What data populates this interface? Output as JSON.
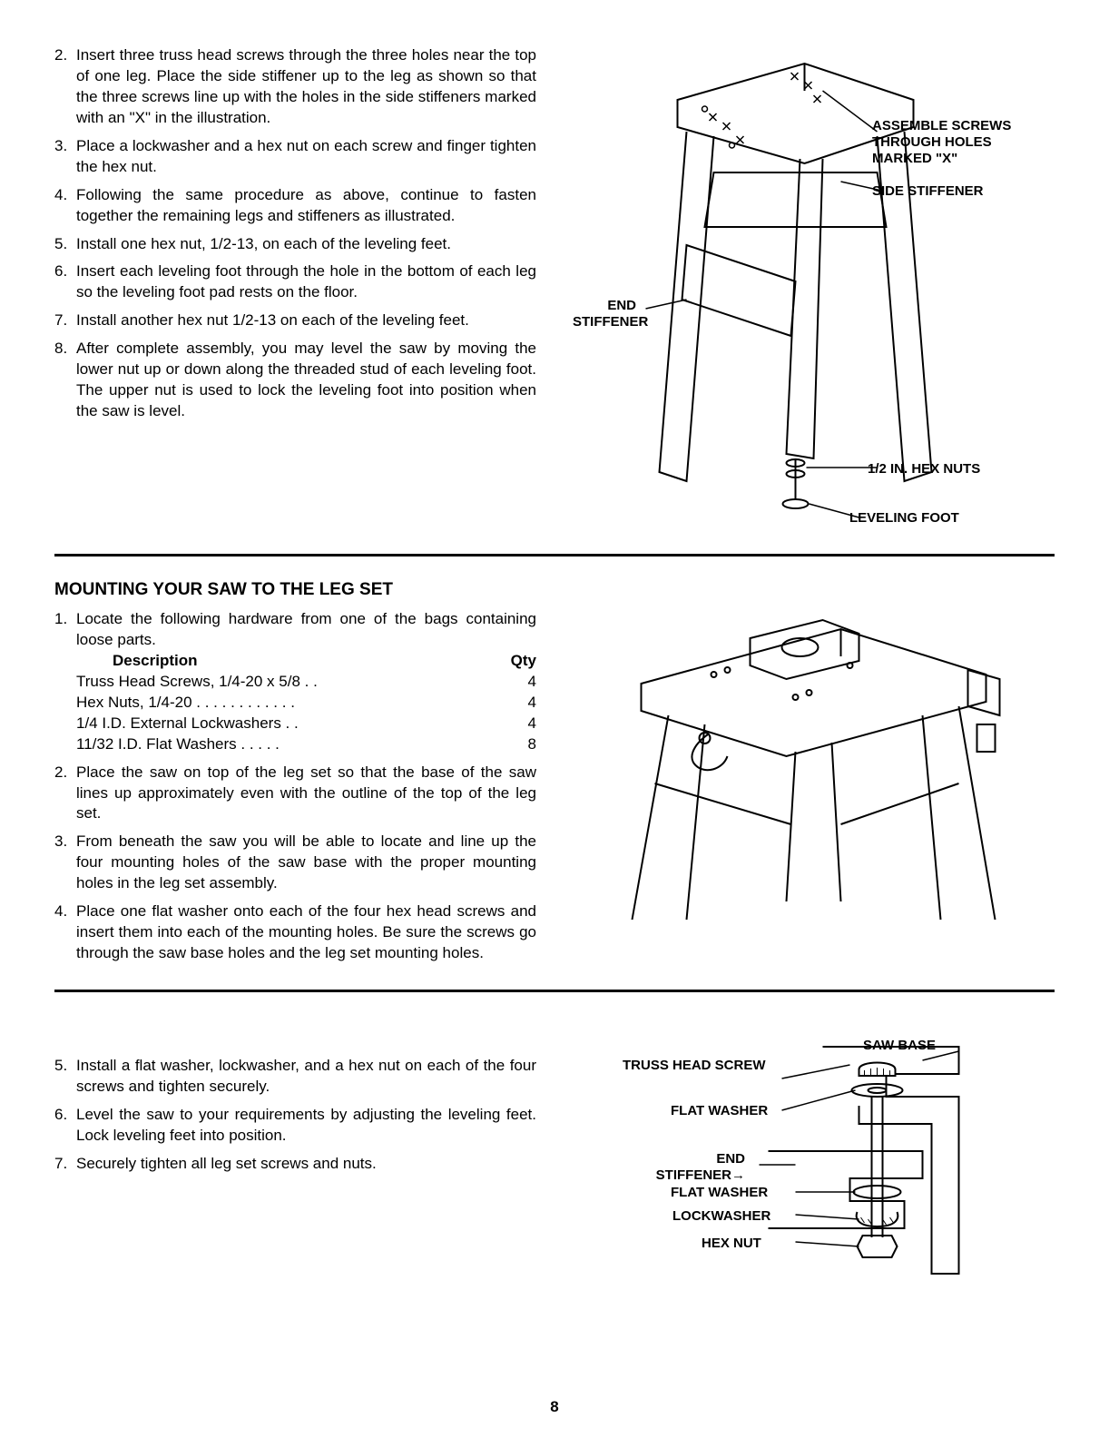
{
  "page_number": "8",
  "colors": {
    "text": "#000000",
    "bg": "#ffffff",
    "line": "#000000"
  },
  "fonts": {
    "body_size": 17,
    "title_size": 19,
    "label_size": 15
  },
  "section1": {
    "steps": [
      {
        "n": "2.",
        "t": "Insert three truss head screws through the three holes near the top of one leg. Place the side stiffener up to the leg as shown so that the three screws line up with the holes in the side stiffeners marked with an \"X\" in the illustration."
      },
      {
        "n": "3.",
        "t": "Place a lockwasher and a hex nut on each screw and finger tighten the hex nut."
      },
      {
        "n": "4.",
        "t": "Following the same procedure as above, continue to fasten together the remaining legs and stiffeners as illustrated."
      },
      {
        "n": "5.",
        "t": "Install one hex nut, 1/2-13, on each of the leveling feet."
      },
      {
        "n": "6.",
        "t": "Insert each leveling foot through the hole in the bottom of each leg so the leveling foot pad rests on the floor."
      },
      {
        "n": "7.",
        "t": "Install another hex nut 1/2-13 on each of the leveling feet."
      },
      {
        "n": "8.",
        "t": "After complete assembly, you may level the saw by moving the lower nut up or down along the threaded stud of each leveling foot. The upper nut is used to lock the leveling foot into position when the saw is level."
      }
    ],
    "figure_labels": {
      "assemble": "ASSEMBLE SCREWS THROUGH HOLES MARKED \"X\"",
      "side_stiffener": "SIDE STIFFENER",
      "end_stiffener": "END STIFFENER",
      "hex_nuts": "1/2 IN. HEX NUTS",
      "leveling_foot": "LEVELING FOOT"
    }
  },
  "section2": {
    "title": "MOUNTING YOUR SAW TO THE LEG SET",
    "step1_intro": "Locate the following hardware from one of the bags containing loose parts.",
    "hw_header_desc": "Description",
    "hw_header_qty": "Qty",
    "hardware": [
      {
        "desc": "Truss Head Screws, 1/4-20 x 5/8",
        "qty": "4"
      },
      {
        "desc": "Hex Nuts, 1/4-20",
        "qty": "4"
      },
      {
        "desc": "1/4 I.D. External Lockwashers",
        "qty": "4"
      },
      {
        "desc": "11/32 I.D. Flat Washers",
        "qty": "8"
      }
    ],
    "steps_after": [
      {
        "n": "2.",
        "t": "Place the saw on top of the leg set so that the base of the saw lines up approximately even with the outline of the top of the leg set."
      },
      {
        "n": "3.",
        "t": "From beneath the saw you will be able to locate and line up the four mounting holes of the saw base with the proper mounting holes in the leg set assembly."
      },
      {
        "n": "4.",
        "t": "Place one flat washer onto each of the four hex head screws and insert them into each of the mounting holes. Be sure the screws go through the saw base holes and the leg set mounting holes."
      }
    ]
  },
  "section3": {
    "steps": [
      {
        "n": "5.",
        "t": "Install a flat washer, lockwasher, and a hex nut on each of the four screws and tighten securely."
      },
      {
        "n": "6.",
        "t": "Level the saw to your requirements by adjusting the leveling feet. Lock leveling feet into position."
      },
      {
        "n": "7.",
        "t": "Securely tighten all leg set screws and nuts."
      }
    ],
    "figure_labels": {
      "saw_base": "SAW BASE",
      "truss_head_screw": "TRUSS HEAD SCREW",
      "flat_washer": "FLAT WASHER",
      "end_stiffener": "END STIFFENER",
      "lockwasher": "LOCKWASHER",
      "hex_nut": "HEX NUT"
    }
  }
}
